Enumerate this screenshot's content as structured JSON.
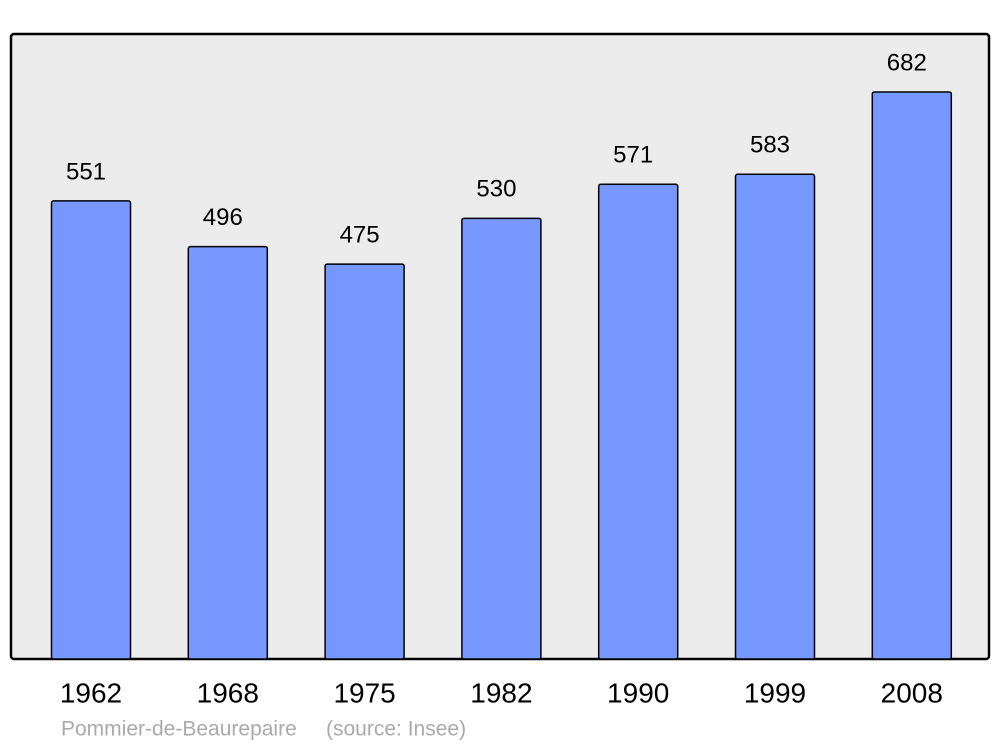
{
  "chart_data": {
    "type": "bar",
    "categories": [
      "1962",
      "1968",
      "1975",
      "1982",
      "1990",
      "1999",
      "2008"
    ],
    "values": [
      551,
      496,
      475,
      530,
      571,
      583,
      682
    ],
    "color": "#7799ff",
    "caption": "Pommier-de-Beaurepaire",
    "source": "(source: Insee)"
  }
}
